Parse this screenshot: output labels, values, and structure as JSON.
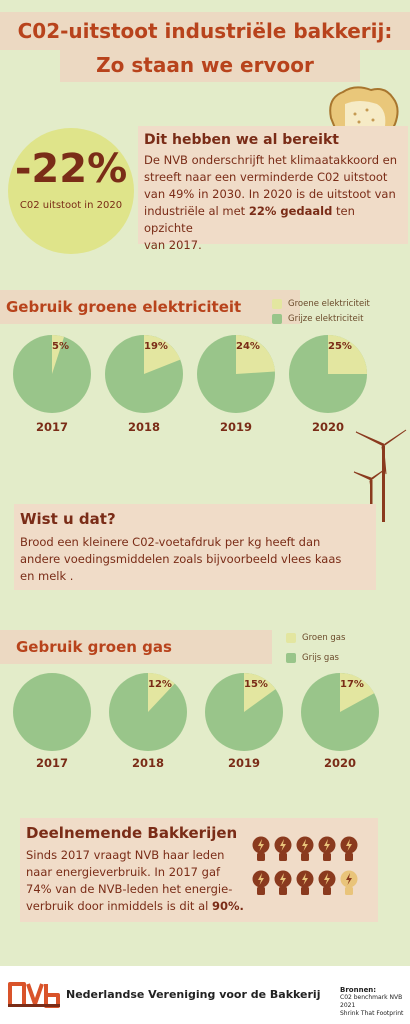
{
  "header": {
    "title_line1": "C02-uitstoot industriële bakkerij:",
    "title_line2": "Zo staan we ervoor"
  },
  "highlight": {
    "value": "-22%",
    "caption": "C02 uitstoot in 2020"
  },
  "achieved": {
    "heading": "Dit hebben we al bereikt",
    "text_lines": [
      "De NVB onderschrijft het klimaatakkoord en",
      "streeft naar een verminderde C02 uitstoot",
      "van 49% in 2030. In 2020 is de uitstoot van"
    ],
    "line4_prefix": "industriële al met ",
    "line4_bold": "22% gedaald",
    "line4_suffix": " ten opzichte",
    "line5": "van 2017."
  },
  "electricity": {
    "title": "Gebruik groene elektriciteit",
    "legend": [
      "Groene elektriciteit",
      "Grijze elektriciteit"
    ]
  },
  "gas": {
    "title": "Gebruik groen gas",
    "legend": [
      "Groen gas",
      "Grijs gas"
    ]
  },
  "fact": {
    "heading": "Wist u dat?",
    "text_lines": [
      "Brood een kleinere C02-voetafdruk per kg heeft dan",
      "andere voedingsmiddelen zoals bijvoorbeeld vlees kaas",
      "en melk ."
    ]
  },
  "bakeries": {
    "heading": "Deelnemende Bakkerijen",
    "text_lines": [
      "Sinds 2017 vraagt NVB haar leden",
      "naar energieverbruik. In 2017 gaf",
      "74% van de NVB-leden het energie-"
    ],
    "line4_prefix": "verbruik door inmiddels is dit al ",
    "line4_bold": "90%."
  },
  "footer": {
    "logo_text": "NVB",
    "org_name": "Nederlandse Vereniging voor de Bakkerij",
    "sources_heading": "Bronnen:",
    "sources": [
      "C02 benchmark NVB 2021",
      "Shrink That Footprint"
    ]
  },
  "colors": {
    "green_share": "#e3e6a0",
    "grey_share": "#99c58a",
    "accent": "#b8431c",
    "text": "#7a2c17"
  },
  "chart_data": [
    {
      "type": "pie",
      "title": "Gebruik groene elektriciteit",
      "categories": [
        "2017",
        "2018",
        "2019",
        "2020"
      ],
      "series": [
        {
          "name": "Groene elektriciteit",
          "values": [
            5,
            19,
            24,
            25
          ]
        },
        {
          "name": "Grijze elektriciteit",
          "values": [
            95,
            81,
            76,
            75
          ]
        }
      ],
      "data_labels": [
        "5%",
        "19%",
        "24%",
        "25%"
      ],
      "legend": "top-right"
    },
    {
      "type": "pie",
      "title": "Gebruik groen gas",
      "categories": [
        "2017",
        "2018",
        "2019",
        "2020"
      ],
      "series": [
        {
          "name": "Groen gas",
          "values": [
            0,
            12,
            15,
            17
          ]
        },
        {
          "name": "Grijs gas",
          "values": [
            100,
            88,
            85,
            83
          ]
        }
      ],
      "data_labels": [
        "",
        "12%",
        "15%",
        "17%"
      ],
      "legend": "top-right"
    }
  ],
  "bulbs": {
    "total": 10,
    "active": 9
  }
}
